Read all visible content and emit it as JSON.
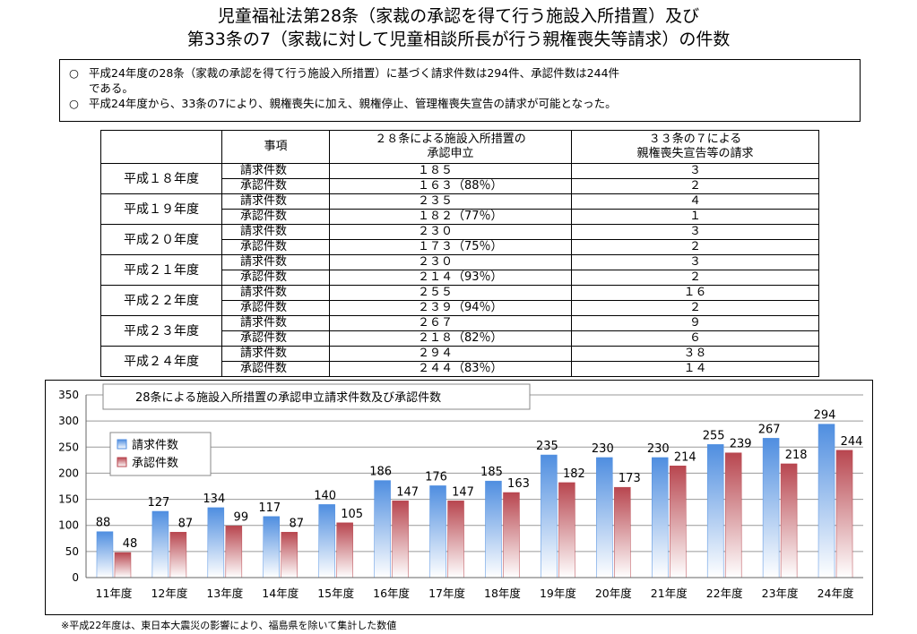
{
  "title_line1": "児童福祉法第28条（家裁の承認を得て行う施設入所措置）及び",
  "title_line2": "第33条の7（家裁に対して児童相談所長が行う親権喪失等請求）の件数",
  "notes": {
    "bullet_mark": "○",
    "line1": "平成24年度の28条（家裁の承認を得て行う施設入所措置）に基づく請求件数は294件、承認件数は244件",
    "line1_cont": "である。",
    "line2": "平成24年度から、33条の7により、親権喪失に加え、親権停止、管理権喪失宣告の請求が可能となった。"
  },
  "table": {
    "headers": [
      "",
      "事項",
      "２８条による施設入所措置の\n承認申立",
      "３３条の７による\n親権喪失宣告等の請求"
    ],
    "rows": [
      {
        "year": "平成１８年度",
        "items": [
          [
            "請求件数",
            "１８５",
            "３"
          ],
          [
            "承認件数",
            "１６３（88％）",
            "２"
          ]
        ]
      },
      {
        "year": "平成１９年度",
        "items": [
          [
            "請求件数",
            "２３５",
            "４"
          ],
          [
            "承認件数",
            "１８２（77％）",
            "１"
          ]
        ]
      },
      {
        "year": "平成２０年度",
        "items": [
          [
            "請求件数",
            "２３０",
            "３"
          ],
          [
            "承認件数",
            "１７３（75％）",
            "２"
          ]
        ]
      },
      {
        "year": "平成２１年度",
        "items": [
          [
            "請求件数",
            "２３０",
            "３"
          ],
          [
            "承認件数",
            "２１４（93％）",
            "２"
          ]
        ]
      },
      {
        "year": "平成２２年度",
        "items": [
          [
            "請求件数",
            "２５５",
            "１６"
          ],
          [
            "承認件数",
            "２３９（94％）",
            "２"
          ]
        ]
      },
      {
        "year": "平成２３年度",
        "items": [
          [
            "請求件数",
            "２６７",
            "９"
          ],
          [
            "承認件数",
            "２１８（82％）",
            "６"
          ]
        ]
      },
      {
        "year": "平成２４年度",
        "items": [
          [
            "請求件数",
            "２９４",
            "３８"
          ],
          [
            "承認件数",
            "２４４（83％）",
            "１４"
          ]
        ]
      }
    ]
  },
  "chart_data": {
    "type": "bar",
    "title": "28条による施設入所措置の承認申立請求件数及び承認件数",
    "categories": [
      "11年度",
      "12年度",
      "13年度",
      "14年度",
      "15年度",
      "16年度",
      "17年度",
      "18年度",
      "19年度",
      "20年度",
      "21年度",
      "22年度",
      "23年度",
      "24年度"
    ],
    "series": [
      {
        "name": "請求件数",
        "values": [
          88,
          127,
          134,
          117,
          140,
          186,
          176,
          185,
          235,
          230,
          230,
          255,
          267,
          294
        ],
        "color": "#4f8ee0"
      },
      {
        "name": "承認件数",
        "values": [
          48,
          87,
          99,
          87,
          105,
          147,
          147,
          163,
          182,
          173,
          214,
          239,
          218,
          244
        ],
        "color": "#b8464f"
      }
    ],
    "yticks": [
      0,
      50,
      100,
      150,
      200,
      250,
      300,
      350
    ],
    "ylim": [
      0,
      350
    ],
    "grid": true,
    "legend": "left"
  },
  "footnote": "※平成22年度は、東日本大震災の影響により、福島県を除いて集計した数値"
}
